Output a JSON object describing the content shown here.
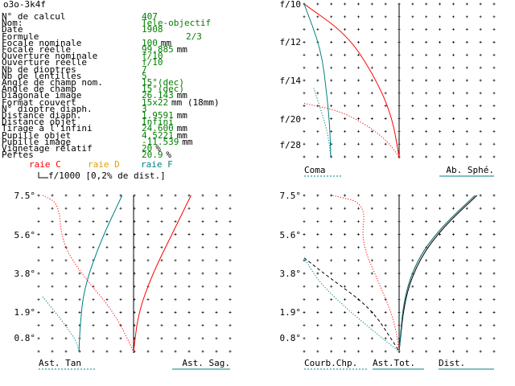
{
  "window_title": "o3o-3k4f",
  "params": [
    {
      "label": "N° de calcul",
      "value": "407",
      "unit": ""
    },
    {
      "label": "Nom:",
      "value": "Tele-objectif",
      "unit": ""
    },
    {
      "label": "Date",
      "value": "1908",
      "unit": ""
    },
    {
      "label": "Formule",
      "value": "2/3",
      "unit": ""
    },
    {
      "label": "Focale nominale",
      "value": "100",
      "unit": "mm"
    },
    {
      "label": "Focale réelle",
      "value": "99.885",
      "unit": "mm"
    },
    {
      "label": "Ouverture nominale",
      "value": "f/10",
      "unit": ""
    },
    {
      "label": "Ouverture réelle",
      "value": "f/10",
      "unit": ""
    },
    {
      "label": "Nb de dioptres",
      "value": "7",
      "unit": ""
    },
    {
      "label": "Nb de lentilles",
      "value": "5",
      "unit": ""
    },
    {
      "label": "Angle de champ nom.",
      "value": "15°(dec)",
      "unit": ""
    },
    {
      "label": "Angle de champ",
      "value": "15°(dec)",
      "unit": ""
    },
    {
      "label": "Diagonale image",
      "value": "26.143",
      "unit": "mm"
    },
    {
      "label": "Format couvert",
      "value": "15x22",
      "unit": "mm (18mm)"
    },
    {
      "label": "N° dioptre diaph.",
      "value": "3",
      "unit": ""
    },
    {
      "label": "Distance diaph.",
      "value": "1.9591",
      "unit": "mm"
    },
    {
      "label": "Distance objet",
      "value": "Infini",
      "unit": ""
    },
    {
      "label": "Tirage à l'infini",
      "value": "24.600",
      "unit": "mm"
    },
    {
      "label": "Pupille objet",
      "value": "4.5221",
      "unit": "mm"
    },
    {
      "label": "Pupille image",
      "value": "-11.539",
      "unit": "mm"
    },
    {
      "label": "Vignetage relatif",
      "value": "20",
      "unit": "%"
    },
    {
      "label": "Pertes",
      "value": "20.9",
      "unit": "%"
    }
  ],
  "legend": {
    "raie_c": "raie C",
    "raie_d": "raie D",
    "raie_f": "raie F",
    "scale_note": "f/1000 [0,2% de dist.]"
  },
  "colors": {
    "values": "#008000",
    "raie_c": "#ff0000",
    "raie_d": "#e0a000",
    "raie_f": "#008080",
    "axis": "#000000"
  },
  "chart_data": [
    {
      "id": "spherical",
      "type": "line",
      "y_ticks": [
        "f/10",
        "f/12",
        "f/14",
        "f/20",
        "f/28"
      ],
      "labels": {
        "left": "Coma",
        "right": "Ab. Sphé."
      },
      "series": [
        {
          "color": "raie_c",
          "style": "solid",
          "points": [
            [
              -1.0,
              1.0
            ],
            [
              -0.55,
              0.8
            ],
            [
              -0.28,
              0.55
            ],
            [
              -0.08,
              0.28
            ],
            [
              0.0,
              0.0
            ]
          ]
        },
        {
          "color": "raie_c",
          "style": "dotted",
          "points": [
            [
              -1.0,
              0.35
            ],
            [
              -0.62,
              0.3
            ],
            [
              -0.32,
              0.2
            ],
            [
              -0.12,
              0.1
            ],
            [
              0.0,
              0.0
            ]
          ]
        },
        {
          "color": "raie_f",
          "style": "solid",
          "points": [
            [
              -1.0,
              1.0
            ],
            [
              -0.82,
              0.7
            ],
            [
              -0.76,
              0.4
            ],
            [
              -0.73,
              0.2
            ],
            [
              -0.72,
              0.0
            ]
          ]
        },
        {
          "color": "raie_f",
          "style": "dotted",
          "points": [
            [
              -0.9,
              0.45
            ],
            [
              -0.82,
              0.3
            ],
            [
              -0.75,
              0.15
            ],
            [
              -0.72,
              0.0
            ]
          ]
        }
      ]
    },
    {
      "id": "astigmatism",
      "type": "line",
      "y_ticks": [
        "7.5°",
        "5.6°",
        "3.8°",
        "1.9°",
        "0.8°"
      ],
      "labels": {
        "left": "Ast. Tan",
        "right": "Ast. Sag."
      },
      "series": [
        {
          "color": "raie_c",
          "style": "solid",
          "points": [
            [
              0.6,
              1.0
            ],
            [
              0.4,
              0.75
            ],
            [
              0.2,
              0.5
            ],
            [
              0.05,
              0.25
            ],
            [
              0.0,
              0.0
            ]
          ]
        },
        {
          "color": "raie_c",
          "style": "dotted",
          "points": [
            [
              -0.95,
              1.0
            ],
            [
              -0.78,
              0.95
            ],
            [
              -0.75,
              0.7
            ],
            [
              -0.55,
              0.5
            ],
            [
              -0.2,
              0.25
            ],
            [
              0.0,
              0.0
            ]
          ]
        },
        {
          "color": "raie_f",
          "style": "solid",
          "points": [
            [
              -0.12,
              1.0
            ],
            [
              -0.35,
              0.7
            ],
            [
              -0.52,
              0.4
            ],
            [
              -0.56,
              0.15
            ],
            [
              -0.57,
              0.0
            ]
          ]
        },
        {
          "color": "raie_f",
          "style": "dotted",
          "points": [
            [
              -0.95,
              0.35
            ],
            [
              -0.75,
              0.2
            ],
            [
              -0.6,
              0.07
            ],
            [
              -0.57,
              0.0
            ]
          ]
        }
      ]
    },
    {
      "id": "field",
      "type": "line",
      "y_ticks": [
        "7.5°",
        "5.6°",
        "3.8°",
        "1.9°",
        "0.8°"
      ],
      "labels": {
        "left": "Courb.Chp.",
        "middle": "Ast.Tot.",
        "right": "Dist."
      },
      "series": [
        {
          "color": "raie_c",
          "style": "solid",
          "points": [
            [
              0.0,
              0.0
            ],
            [
              0.05,
              0.35
            ],
            [
              0.2,
              0.6
            ],
            [
              0.45,
              0.8
            ],
            [
              0.8,
              1.0
            ]
          ]
        },
        {
          "color": "axis",
          "style": "solid",
          "points": [
            [
              0.0,
              0.0
            ],
            [
              0.06,
              0.35
            ],
            [
              0.22,
              0.6
            ],
            [
              0.47,
              0.8
            ],
            [
              0.82,
              1.0
            ]
          ]
        },
        {
          "color": "raie_f",
          "style": "solid",
          "points": [
            [
              0.0,
              0.0
            ],
            [
              0.05,
              0.35
            ],
            [
              0.2,
              0.6
            ],
            [
              0.45,
              0.8
            ],
            [
              0.8,
              1.0
            ]
          ]
        },
        {
          "color": "raie_c",
          "style": "dotted",
          "points": [
            [
              -0.7,
              1.0
            ],
            [
              -0.35,
              0.95
            ],
            [
              -0.4,
              0.7
            ],
            [
              -0.22,
              0.45
            ],
            [
              -0.05,
              0.2
            ],
            [
              0.0,
              0.0
            ]
          ]
        },
        {
          "color": "axis",
          "style": "dashed",
          "points": [
            [
              -1.0,
              0.6
            ],
            [
              -0.75,
              0.48
            ],
            [
              -0.3,
              0.28
            ],
            [
              -0.05,
              0.05
            ],
            [
              0.0,
              0.0
            ]
          ]
        },
        {
          "color": "raie_f",
          "style": "dotted",
          "points": [
            [
              -1.0,
              0.6
            ],
            [
              -0.85,
              0.45
            ],
            [
              -0.6,
              0.3
            ],
            [
              -0.25,
              0.12
            ],
            [
              0.0,
              0.0
            ]
          ]
        }
      ]
    }
  ]
}
